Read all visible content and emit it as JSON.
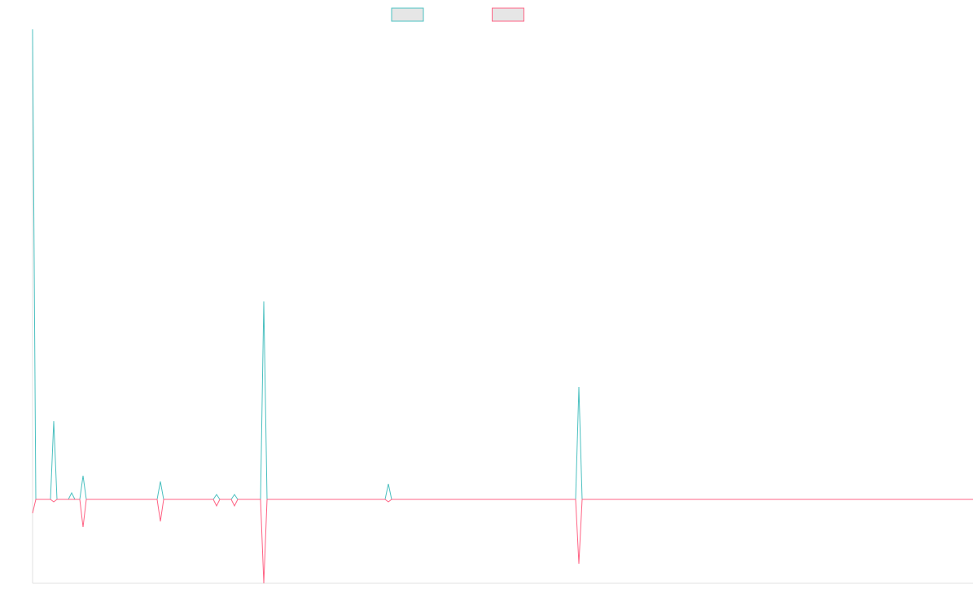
{
  "chart_data": {
    "type": "line",
    "x": [
      0,
      4,
      22,
      26,
      30,
      44,
      48,
      52,
      58,
      62,
      66,
      153,
      157,
      161,
      222,
      226,
      230,
      244,
      248,
      252,
      280,
      284,
      288,
      433,
      437,
      441,
      667,
      671,
      675,
      1155
    ],
    "series": [
      {
        "color": "#4bc0c0",
        "values": [
          577,
          0,
          0,
          96,
          0,
          0,
          8,
          0,
          0,
          29,
          0,
          0,
          22,
          0,
          0,
          6,
          0,
          0,
          6,
          0,
          0,
          243,
          0,
          0,
          19,
          0,
          0,
          138,
          0,
          0
        ]
      },
      {
        "color": "#ff6384",
        "values": [
          -17,
          0,
          0,
          -3,
          0,
          0,
          0,
          0,
          0,
          -34,
          0,
          0,
          -27,
          0,
          0,
          -8,
          0,
          0,
          -8,
          0,
          0,
          -103,
          0,
          0,
          -3,
          0,
          0,
          -79,
          0,
          0
        ]
      }
    ],
    "xlim": [
      0,
      1155
    ],
    "ylim": [
      -103,
      577
    ]
  }
}
